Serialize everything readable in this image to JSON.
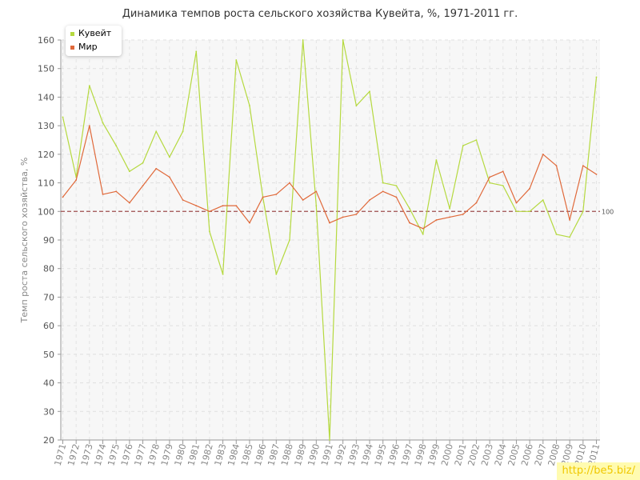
{
  "chart_data": {
    "type": "line",
    "title": "Динамика темпов роста сельского хозяйства Кувейта, %, 1971-2011 гг.",
    "ylabel": "Темп роста сельского хозяйства, %",
    "xlabel": "",
    "ylim": [
      20,
      160
    ],
    "yticks": [
      20,
      30,
      40,
      50,
      60,
      70,
      80,
      90,
      100,
      110,
      120,
      130,
      140,
      150,
      160
    ],
    "grid": true,
    "legend_position": "top-left",
    "reference_line": {
      "value": 100,
      "label": "100",
      "color": "#a05050"
    },
    "x": [
      "1971",
      "1972",
      "1973",
      "1974",
      "1975",
      "1976",
      "1977",
      "1978",
      "1979",
      "1980",
      "1981",
      "1982",
      "1983",
      "1984",
      "1985",
      "1986",
      "1987",
      "1988",
      "1989",
      "1990",
      "1991",
      "1992",
      "1993",
      "1994",
      "1995",
      "1996",
      "1997",
      "1998",
      "1999",
      "2000",
      "2001",
      "2002",
      "2003",
      "2004",
      "2005",
      "2006",
      "2007",
      "2008",
      "2009",
      "2010",
      "2011"
    ],
    "series": [
      {
        "name": "Кувейт",
        "color": "#b5d93f",
        "values": [
          133,
          112,
          144,
          131,
          123,
          114,
          117,
          128,
          119,
          128,
          156,
          93,
          78,
          153,
          137,
          105,
          78,
          90,
          160,
          102,
          20,
          160,
          137,
          142,
          110,
          109,
          101,
          92,
          118,
          101,
          123,
          125,
          110,
          109,
          100,
          100,
          104,
          92,
          91,
          100,
          147
        ]
      },
      {
        "name": "Мир",
        "color": "#e0693a",
        "values": [
          105,
          111,
          130,
          106,
          107,
          103,
          109,
          115,
          112,
          104,
          102,
          100,
          102,
          102,
          96,
          105,
          106,
          110,
          104,
          107,
          96,
          98,
          99,
          104,
          107,
          105,
          96,
          94,
          97,
          98,
          99,
          103,
          112,
          114,
          103,
          108,
          120,
          116,
          97,
          116,
          113
        ]
      }
    ]
  },
  "watermark": "http://be5.biz/"
}
